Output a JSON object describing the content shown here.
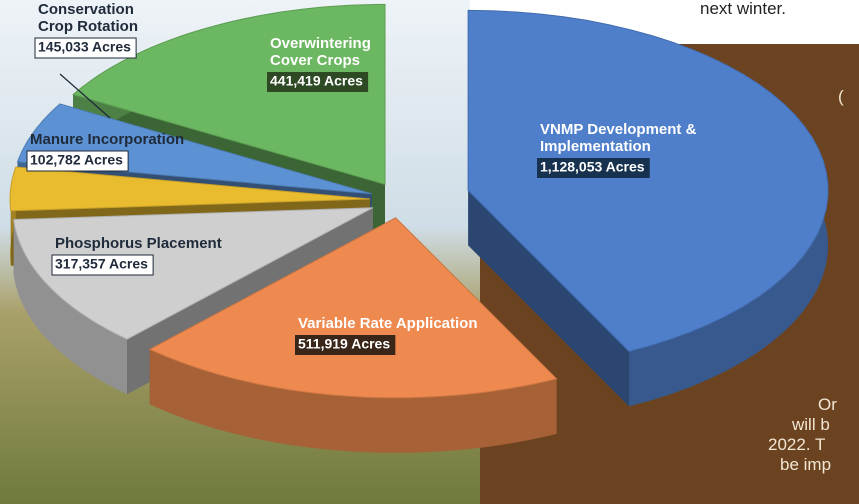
{
  "chart_data": {
    "type": "pie",
    "categories": [
      "VNMP Development & Implementation",
      "Variable Rate Application",
      "Phosphorus Placement",
      "Manure Incorporation",
      "Conservation Crop Rotation",
      "Overwintering Cover Crops"
    ],
    "values": [
      1128053,
      511919,
      317357,
      102782,
      145033,
      441419
    ],
    "value_labels": [
      "1,128,053 Acres",
      "511,919 Acres",
      "317,357 Acres",
      "102,782 Acres",
      "145,033 Acres",
      "441,419 Acres"
    ],
    "colors": [
      "#4f7fcb",
      "#ee8a4f",
      "#cfcfcf",
      "#e9bb2f",
      "#5c92d3",
      "#6cb761"
    ]
  },
  "page_text": [
    "next winter.",
    "(",
    "Or",
    "will b",
    "2022. T",
    "be imp"
  ]
}
